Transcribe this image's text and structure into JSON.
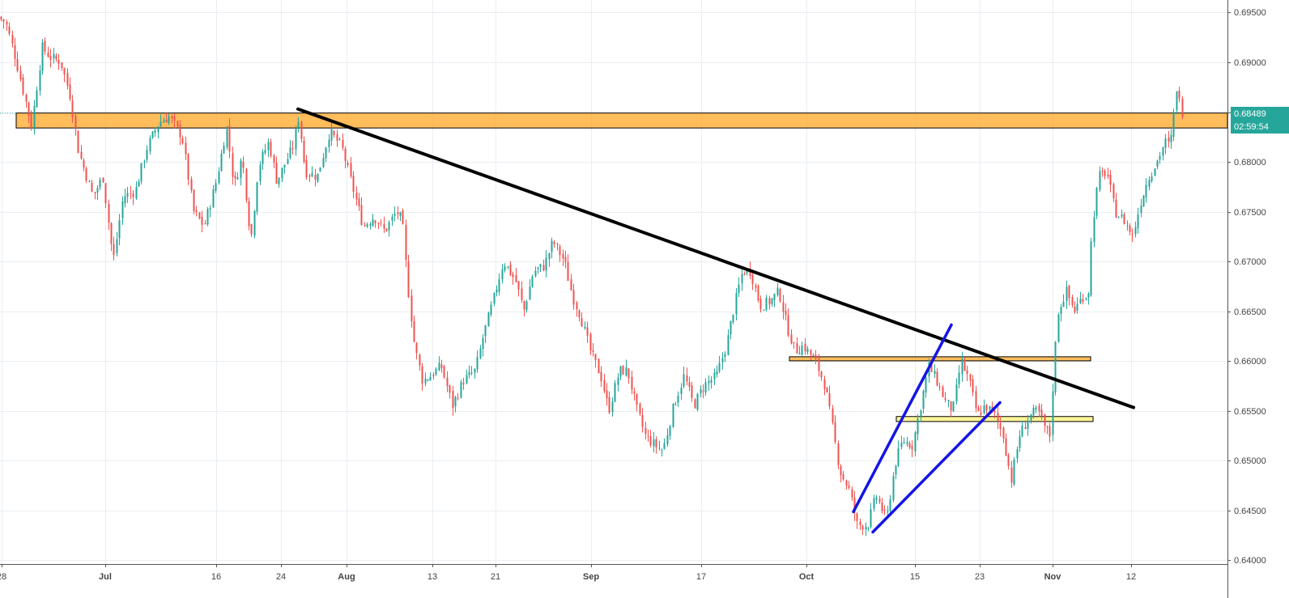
{
  "chart_data": {
    "type": "candlestick",
    "y_ticks": [
      "0.69500",
      "0.69000",
      "0.68500",
      "0.68000",
      "0.67500",
      "0.67000",
      "0.66500",
      "0.66000",
      "0.65500",
      "0.65000",
      "0.64500",
      "0.64000"
    ],
    "x_ticks": [
      "28",
      "Jul",
      "16",
      "24",
      "Aug",
      "13",
      "21",
      "Sep",
      "17",
      "Oct",
      "15",
      "23",
      "Nov",
      "12"
    ],
    "ylim": [
      0.6395,
      0.6965
    ],
    "last_price": "0.68489",
    "countdown": "02:59:54",
    "grid": true,
    "price_path": [
      [
        0,
        0.6945
      ],
      [
        10,
        0.694
      ],
      [
        22,
        0.6905
      ],
      [
        42,
        0.6835
      ],
      [
        55,
        0.6915
      ],
      [
        65,
        0.6905
      ],
      [
        78,
        0.69
      ],
      [
        90,
        0.6865
      ],
      [
        100,
        0.681
      ],
      [
        118,
        0.6765
      ],
      [
        130,
        0.6785
      ],
      [
        143,
        0.67
      ],
      [
        155,
        0.6765
      ],
      [
        170,
        0.677
      ],
      [
        185,
        0.6815
      ],
      [
        200,
        0.684
      ],
      [
        212,
        0.6845
      ],
      [
        228,
        0.6825
      ],
      [
        242,
        0.675
      ],
      [
        255,
        0.6735
      ],
      [
        270,
        0.678
      ],
      [
        283,
        0.6835
      ],
      [
        292,
        0.6775
      ],
      [
        302,
        0.6805
      ],
      [
        313,
        0.672
      ],
      [
        322,
        0.6795
      ],
      [
        335,
        0.682
      ],
      [
        345,
        0.678
      ],
      [
        356,
        0.68
      ],
      [
        365,
        0.6815
      ],
      [
        372,
        0.6845
      ],
      [
        380,
        0.679
      ],
      [
        395,
        0.6785
      ],
      [
        410,
        0.683
      ],
      [
        425,
        0.6815
      ],
      [
        440,
        0.677
      ],
      [
        452,
        0.6735
      ],
      [
        465,
        0.6745
      ],
      [
        478,
        0.673
      ],
      [
        493,
        0.675
      ],
      [
        500,
        0.674
      ],
      [
        506,
        0.668
      ],
      [
        515,
        0.6615
      ],
      [
        525,
        0.658
      ],
      [
        535,
        0.6585
      ],
      [
        548,
        0.6595
      ],
      [
        562,
        0.6555
      ],
      [
        575,
        0.658
      ],
      [
        590,
        0.659
      ],
      [
        600,
        0.6625
      ],
      [
        612,
        0.666
      ],
      [
        625,
        0.67
      ],
      [
        640,
        0.668
      ],
      [
        650,
        0.665
      ],
      [
        662,
        0.669
      ],
      [
        675,
        0.6695
      ],
      [
        686,
        0.672
      ],
      [
        700,
        0.67
      ],
      [
        710,
        0.6665
      ],
      [
        720,
        0.6645
      ],
      [
        732,
        0.661
      ],
      [
        745,
        0.6585
      ],
      [
        755,
        0.655
      ],
      [
        768,
        0.659
      ],
      [
        778,
        0.659
      ],
      [
        790,
        0.655
      ],
      [
        800,
        0.6525
      ],
      [
        812,
        0.6515
      ],
      [
        822,
        0.651
      ],
      [
        835,
        0.6555
      ],
      [
        848,
        0.6585
      ],
      [
        860,
        0.6555
      ],
      [
        872,
        0.6575
      ],
      [
        888,
        0.6585
      ],
      [
        900,
        0.6615
      ],
      [
        910,
        0.6655
      ],
      [
        920,
        0.669
      ],
      [
        930,
        0.669
      ],
      [
        942,
        0.6655
      ],
      [
        955,
        0.666
      ],
      [
        965,
        0.667
      ],
      [
        975,
        0.6635
      ],
      [
        985,
        0.661
      ],
      [
        995,
        0.6615
      ],
      [
        1010,
        0.66
      ],
      [
        1022,
        0.6575
      ],
      [
        1032,
        0.653
      ],
      [
        1040,
        0.649
      ],
      [
        1052,
        0.647
      ],
      [
        1062,
        0.6435
      ],
      [
        1075,
        0.6435
      ],
      [
        1085,
        0.6465
      ],
      [
        1098,
        0.644
      ],
      [
        1108,
        0.6495
      ],
      [
        1118,
        0.652
      ],
      [
        1130,
        0.6515
      ],
      [
        1140,
        0.6555
      ],
      [
        1150,
        0.6595
      ],
      [
        1160,
        0.658
      ],
      [
        1170,
        0.656
      ],
      [
        1180,
        0.655
      ],
      [
        1190,
        0.66
      ],
      [
        1200,
        0.658
      ],
      [
        1210,
        0.6545
      ],
      [
        1220,
        0.6555
      ],
      [
        1232,
        0.6545
      ],
      [
        1242,
        0.6525
      ],
      [
        1252,
        0.648
      ],
      [
        1262,
        0.6525
      ],
      [
        1275,
        0.6545
      ],
      [
        1285,
        0.655
      ],
      [
        1292,
        0.6535
      ],
      [
        1300,
        0.6525
      ],
      [
        1305,
        0.66
      ],
      [
        1310,
        0.665
      ],
      [
        1320,
        0.667
      ],
      [
        1330,
        0.665
      ],
      [
        1340,
        0.6665
      ],
      [
        1347,
        0.6665
      ],
      [
        1352,
        0.6735
      ],
      [
        1360,
        0.6785
      ],
      [
        1370,
        0.679
      ],
      [
        1380,
        0.675
      ],
      [
        1392,
        0.674
      ],
      [
        1402,
        0.6725
      ],
      [
        1412,
        0.676
      ],
      [
        1422,
        0.6785
      ],
      [
        1432,
        0.68
      ],
      [
        1442,
        0.682
      ],
      [
        1448,
        0.6815
      ],
      [
        1452,
        0.684
      ],
      [
        1456,
        0.6875
      ],
      [
        1462,
        0.685
      ]
    ],
    "annotations": [
      {
        "name": "resistance-zone-top",
        "kind": "zone",
        "color": "#FFA726",
        "y1": 0.68487,
        "y2": 0.68337,
        "x1": 20,
        "x2": 1516
      },
      {
        "name": "resistance-zone-mid",
        "kind": "zone",
        "color": "#FFA726",
        "y1": 0.6604,
        "y2": 0.66,
        "x1": 975,
        "x2": 1347
      },
      {
        "name": "support-zone-yellow",
        "kind": "zone",
        "color": "#FFF176",
        "y1": 0.6544,
        "y2": 0.6539,
        "x1": 1107,
        "x2": 1350
      },
      {
        "name": "downtrend-line",
        "kind": "line",
        "color": "#000000",
        "x1": 368,
        "y1": 0.68527,
        "x2": 1400,
        "y2": 0.65531
      },
      {
        "name": "rising-channel-upper",
        "kind": "line",
        "color": "#1414E6",
        "x1": 1054,
        "y1": 0.64484,
        "x2": 1175,
        "y2": 0.66361
      },
      {
        "name": "rising-channel-lower",
        "kind": "line",
        "color": "#1414E6",
        "x1": 1078,
        "y1": 0.6428,
        "x2": 1235,
        "y2": 0.6558
      }
    ],
    "colors": {
      "up": "#26A69A",
      "down": "#EF5350",
      "last_price_bg": "#26A69A"
    }
  }
}
